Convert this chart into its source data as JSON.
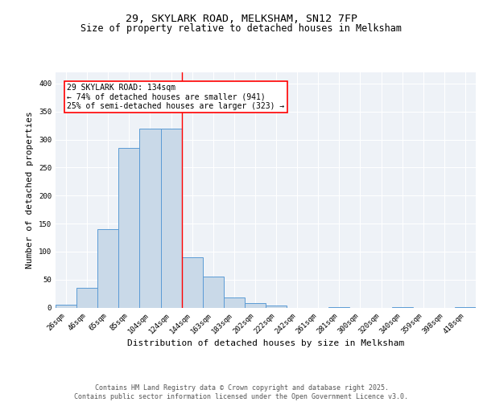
{
  "title_line1": "29, SKYLARK ROAD, MELKSHAM, SN12 7FP",
  "title_line2": "Size of property relative to detached houses in Melksham",
  "xlabel": "Distribution of detached houses by size in Melksham",
  "ylabel": "Number of detached properties",
  "bar_labels": [
    "26sqm",
    "46sqm",
    "65sqm",
    "85sqm",
    "104sqm",
    "124sqm",
    "144sqm",
    "163sqm",
    "183sqm",
    "202sqm",
    "222sqm",
    "242sqm",
    "261sqm",
    "281sqm",
    "300sqm",
    "320sqm",
    "340sqm",
    "359sqm",
    "398sqm",
    "418sqm"
  ],
  "bar_values": [
    5,
    35,
    140,
    285,
    320,
    320,
    90,
    55,
    18,
    8,
    3,
    0,
    0,
    1,
    0,
    0,
    1,
    0,
    0,
    1
  ],
  "bar_color": "#c9d9e8",
  "bar_edge_color": "#5b9bd5",
  "vline_x": 5.5,
  "vline_color": "red",
  "annotation_text": "29 SKYLARK ROAD: 134sqm\n← 74% of detached houses are smaller (941)\n25% of semi-detached houses are larger (323) →",
  "annotation_box_color": "white",
  "annotation_box_edge": "red",
  "ylim": [
    0,
    420
  ],
  "yticks": [
    0,
    50,
    100,
    150,
    200,
    250,
    300,
    350,
    400
  ],
  "background_color": "#eef2f7",
  "footer_text": "Contains HM Land Registry data © Crown copyright and database right 2025.\nContains public sector information licensed under the Open Government Licence v3.0.",
  "grid_color": "white",
  "title_fontsize": 9.5,
  "subtitle_fontsize": 8.5,
  "tick_fontsize": 6.5,
  "ylabel_fontsize": 8,
  "xlabel_fontsize": 8,
  "footer_fontsize": 6,
  "annot_fontsize": 7
}
